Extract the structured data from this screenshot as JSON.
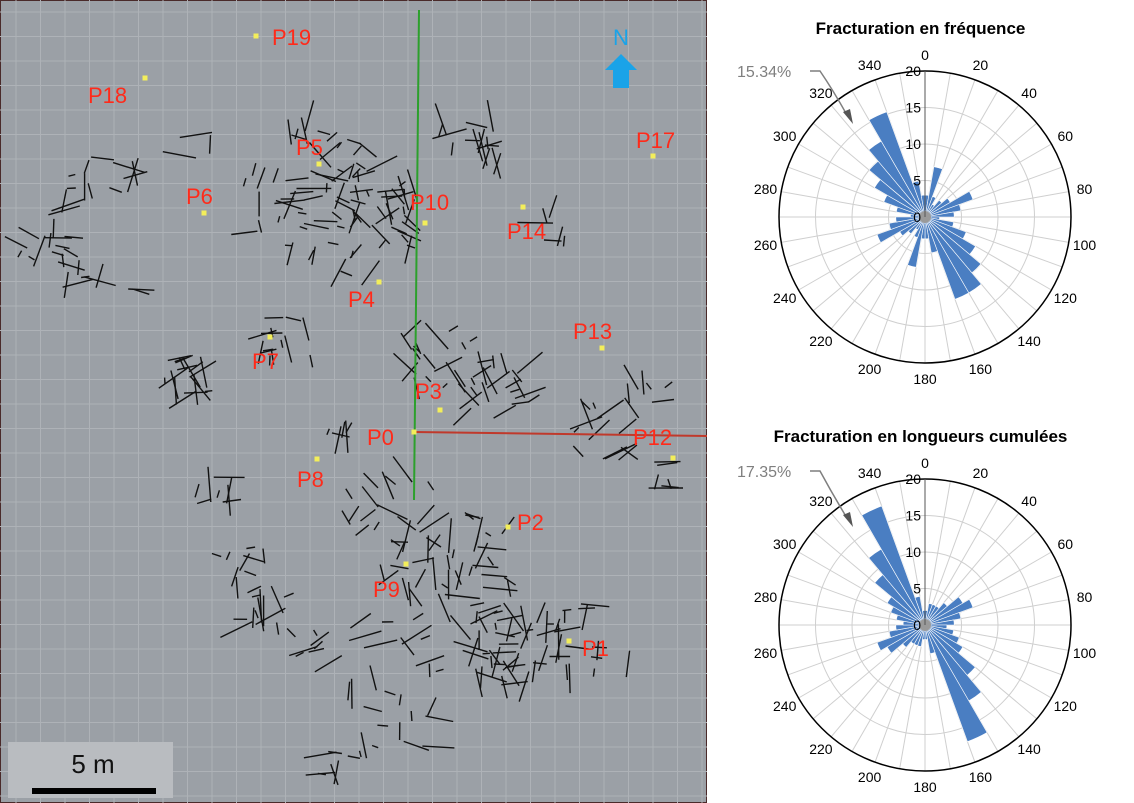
{
  "map": {
    "north_label": "N",
    "scale_label": "5 m",
    "points": [
      {
        "id": "P19",
        "label": "P19"
      },
      {
        "id": "P18",
        "label": "P18"
      },
      {
        "id": "P5",
        "label": "P5"
      },
      {
        "id": "P17",
        "label": "P17"
      },
      {
        "id": "P6",
        "label": "P6"
      },
      {
        "id": "P10",
        "label": "P10"
      },
      {
        "id": "P14",
        "label": "P14"
      },
      {
        "id": "P4",
        "label": "P4"
      },
      {
        "id": "P7",
        "label": "P7"
      },
      {
        "id": "P13",
        "label": "P13"
      },
      {
        "id": "P3",
        "label": "P3"
      },
      {
        "id": "P0",
        "label": "P0"
      },
      {
        "id": "P12",
        "label": "P12"
      },
      {
        "id": "P8",
        "label": "P8"
      },
      {
        "id": "P2",
        "label": "P2"
      },
      {
        "id": "P9",
        "label": "P9"
      },
      {
        "id": "P1",
        "label": "P1"
      }
    ],
    "colors": {
      "background": "#9ba0a6",
      "grid": "#aeb2b7",
      "fracture": "#111111",
      "point": "#f3ee5a",
      "label": "#ff2a1a",
      "north": "#1aa3e8",
      "axis_ns": "#2ca02c",
      "axis_ew": "#c0392b"
    }
  },
  "chart_data": [
    {
      "type": "rose",
      "title": "Fracturation en fréquence",
      "radial_ticks": [
        0,
        5,
        10,
        15,
        20
      ],
      "rlim": [
        0,
        20
      ],
      "angle_labels": [
        "0",
        "20",
        "40",
        "60",
        "80",
        "100",
        "120",
        "140",
        "160",
        "180",
        "200",
        "220",
        "240",
        "260",
        "280",
        "300",
        "320",
        "340"
      ],
      "bin_width_deg": 10,
      "bins_start": [
        0,
        10,
        20,
        30,
        40,
        50,
        60,
        70,
        80,
        90,
        100,
        110,
        120,
        130,
        140,
        150,
        160,
        170,
        180,
        190,
        200,
        210,
        220,
        230,
        240,
        250,
        260,
        270,
        280,
        290,
        300,
        310,
        320,
        330,
        340,
        350
      ],
      "values": [
        3,
        7,
        3,
        2,
        3,
        4,
        7,
        5,
        4,
        2,
        4,
        6,
        8,
        10,
        12,
        12,
        5,
        3,
        3,
        7,
        3,
        2,
        3,
        4,
        7,
        5,
        4,
        2,
        4,
        6,
        8,
        10,
        12,
        15.34,
        5,
        3
      ],
      "annotation": "15.34%",
      "bar_color": "#4a7ec2"
    },
    {
      "type": "rose",
      "title": "Fracturation en longueurs cumulées",
      "radial_ticks": [
        0,
        5,
        10,
        15,
        20
      ],
      "rlim": [
        0,
        20
      ],
      "angle_labels": [
        "0",
        "20",
        "40",
        "60",
        "80",
        "100",
        "120",
        "140",
        "160",
        "180",
        "200",
        "220",
        "240",
        "260",
        "280",
        "300",
        "320",
        "340"
      ],
      "bin_width_deg": 10,
      "bins_start": [
        0,
        10,
        20,
        30,
        40,
        50,
        60,
        70,
        80,
        90,
        100,
        110,
        120,
        130,
        140,
        150,
        160,
        170,
        180,
        190,
        200,
        210,
        220,
        230,
        240,
        250,
        260,
        270,
        280,
        290,
        300,
        310,
        320,
        330,
        340,
        350
      ],
      "values": [
        2,
        3,
        3,
        3,
        4,
        6,
        7,
        5,
        4,
        3,
        4,
        5,
        6,
        9,
        12,
        17,
        4,
        2,
        2,
        3,
        3,
        3,
        4,
        6,
        7,
        5,
        4,
        3,
        4,
        5,
        6,
        9,
        12,
        17.35,
        4,
        2
      ],
      "annotation": "17.35%",
      "bar_color": "#4a7ec2"
    }
  ]
}
